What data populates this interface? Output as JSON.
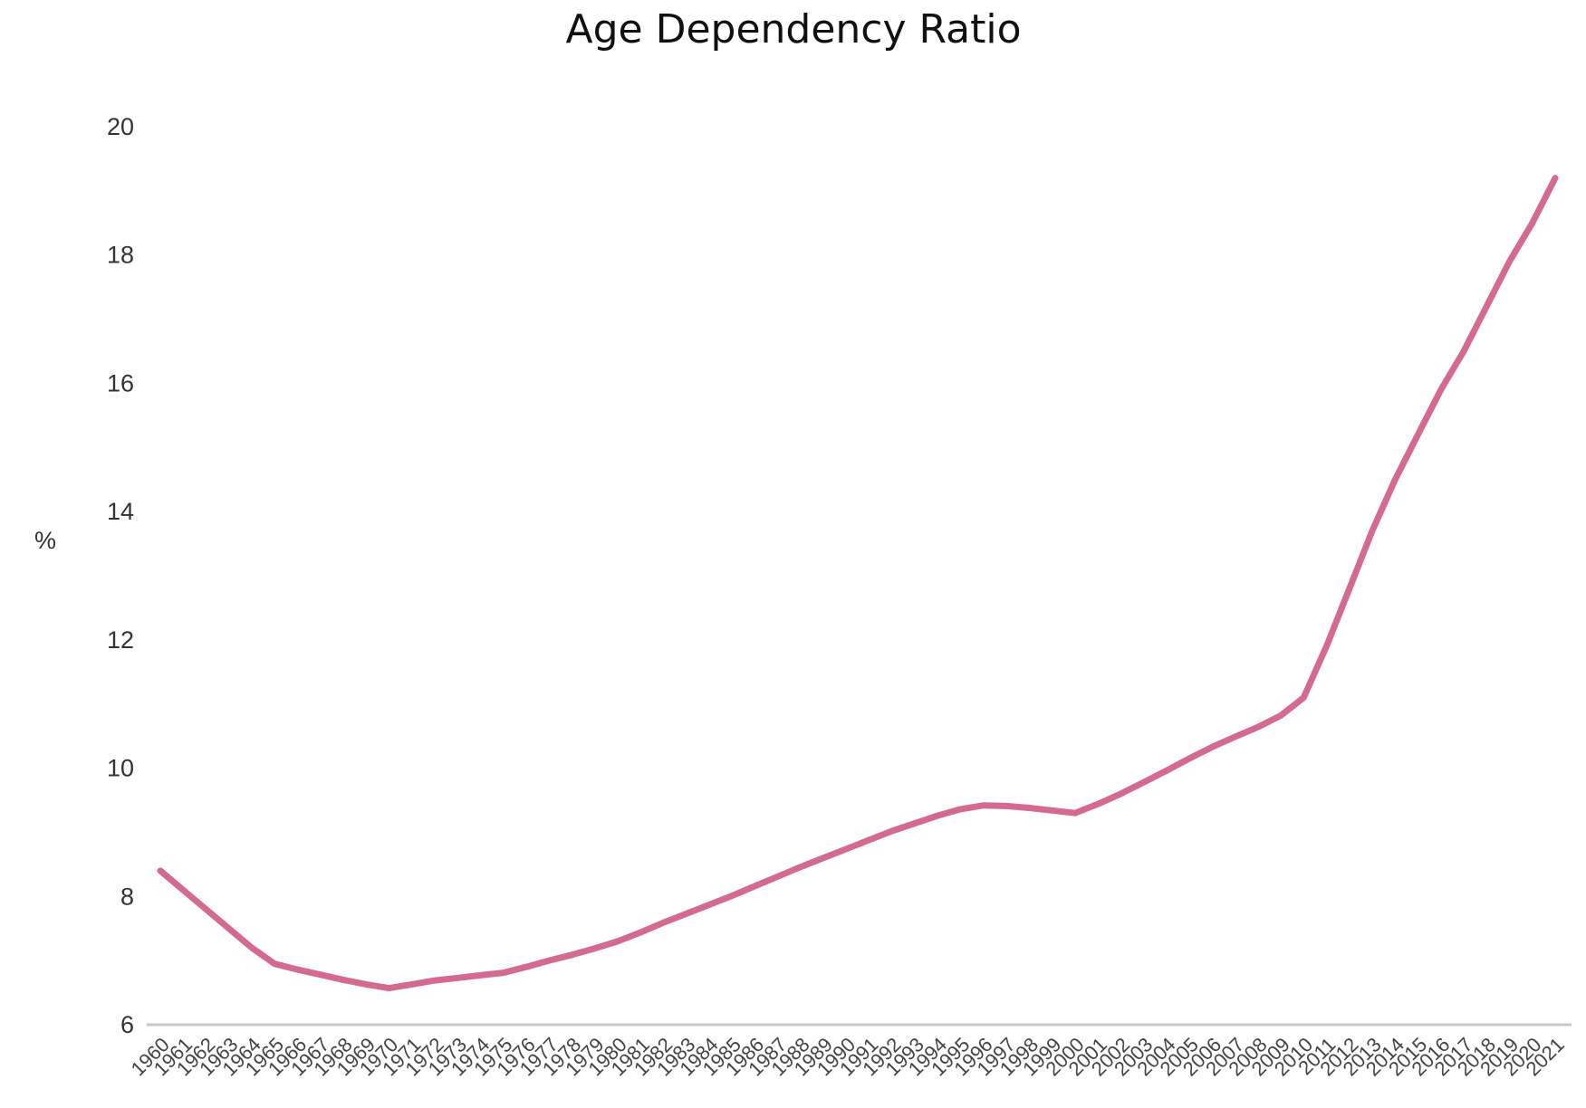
{
  "chart_data": {
    "type": "line",
    "title": "Age Dependency Ratio",
    "xlabel": "",
    "ylabel": "%",
    "ylim": [
      6,
      20
    ],
    "yticks": [
      6,
      8,
      10,
      12,
      14,
      16,
      18,
      20
    ],
    "grid": false,
    "legend": "none",
    "colors": {
      "line": "#d46a92",
      "baseline": "#c8c8c8"
    },
    "x": [
      "1960",
      "1961",
      "1962",
      "1963",
      "1964",
      "1965",
      "1966",
      "1967",
      "1968",
      "1969",
      "1970",
      "1971",
      "1972",
      "1973",
      "1974",
      "1975",
      "1976",
      "1977",
      "1978",
      "1979",
      "1980",
      "1981",
      "1982",
      "1983",
      "1984",
      "1985",
      "1986",
      "1987",
      "1988",
      "1989",
      "1990",
      "1991",
      "1992",
      "1993",
      "1994",
      "1995",
      "1996",
      "1997",
      "1998",
      "1999",
      "2000",
      "2001",
      "2002",
      "2003",
      "2004",
      "2005",
      "2006",
      "2007",
      "2008",
      "2009",
      "2010",
      "2011",
      "2012",
      "2013",
      "2014",
      "2015",
      "2016",
      "2017",
      "2018",
      "2019",
      "2020",
      "2021"
    ],
    "series": [
      {
        "values": [
          8.4,
          8.1,
          7.8,
          7.5,
          7.2,
          6.95,
          6.86,
          6.78,
          6.7,
          6.63,
          6.57,
          6.63,
          6.69,
          6.73,
          6.77,
          6.81,
          6.9,
          7.0,
          7.09,
          7.19,
          7.3,
          7.44,
          7.59,
          7.73,
          7.87,
          8.01,
          8.16,
          8.31,
          8.46,
          8.6,
          8.74,
          8.88,
          9.02,
          9.14,
          9.26,
          9.36,
          9.42,
          9.41,
          9.38,
          9.34,
          9.3,
          9.44,
          9.6,
          9.78,
          9.96,
          10.15,
          10.33,
          10.49,
          10.64,
          10.82,
          11.1,
          11.9,
          12.8,
          13.7,
          14.5,
          15.2,
          15.9,
          16.5,
          17.2,
          17.9,
          18.5,
          19.2
        ]
      }
    ]
  }
}
